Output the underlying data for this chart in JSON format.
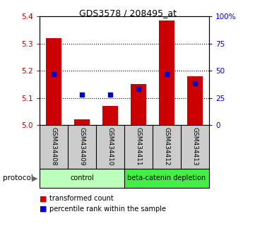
{
  "title": "GDS3578 / 208495_at",
  "samples": [
    "GSM434408",
    "GSM434409",
    "GSM434410",
    "GSM434411",
    "GSM434412",
    "GSM434413"
  ],
  "red_values": [
    5.32,
    5.02,
    5.07,
    5.15,
    5.385,
    5.18
  ],
  "blue_values": [
    47,
    28,
    28,
    33,
    47,
    38
  ],
  "ylim_left": [
    5.0,
    5.4
  ],
  "ylim_right": [
    0,
    100
  ],
  "yticks_left": [
    5.0,
    5.1,
    5.2,
    5.3,
    5.4
  ],
  "yticks_right": [
    0,
    25,
    50,
    75,
    100
  ],
  "ytick_labels_right": [
    "0",
    "25",
    "50",
    "75",
    "100%"
  ],
  "red_color": "#cc0000",
  "blue_color": "#0000cc",
  "bar_width": 0.55,
  "groups": [
    {
      "label": "control",
      "indices": [
        0,
        1,
        2
      ],
      "color": "#bbffbb"
    },
    {
      "label": "beta-catenin depletion",
      "indices": [
        3,
        4,
        5
      ],
      "color": "#44ee44"
    }
  ],
  "protocol_label": "protocol",
  "legend1": "transformed count",
  "legend2": "percentile rank within the sample",
  "bg_color": "#ffffff",
  "left_tick_color": "#cc0000",
  "right_tick_color": "#0000cc",
  "sample_bg_color": "#cccccc",
  "grid_yticks": [
    5.1,
    5.2,
    5.3
  ]
}
